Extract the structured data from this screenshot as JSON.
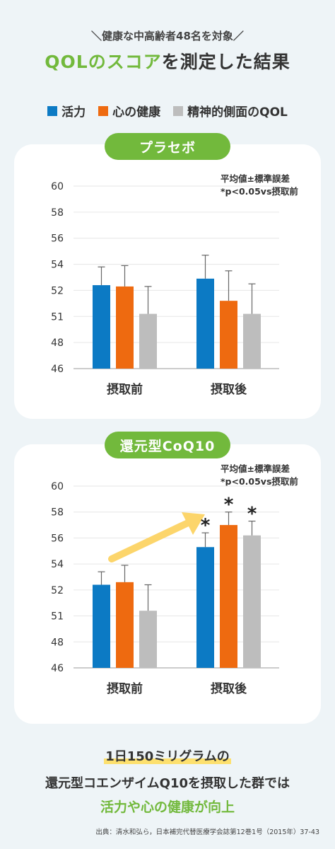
{
  "header": {
    "subtitle": "＼健康な中高齢者48名を対象／",
    "title_accent": "QOLのスコア",
    "title_rest": "を測定した結果"
  },
  "legend": [
    {
      "label": "活力",
      "color": "#0c7ac4"
    },
    {
      "label": "心の健康",
      "color": "#ee6a10"
    },
    {
      "label": "精神的側面のQOL",
      "color": "#bdbdbd"
    }
  ],
  "notes": {
    "line1": "平均値±標準誤差",
    "line2": "*p<0.05vs摂取前"
  },
  "chart_data": [
    {
      "type": "bar",
      "title": "プラセボ",
      "categories": [
        "摂取前",
        "摂取後"
      ],
      "y_ticks": [
        "46",
        "48",
        "51",
        "52",
        "54",
        "56",
        "58",
        "60"
      ],
      "series": [
        {
          "name": "活力",
          "color": "#0c7ac4",
          "values": [
            52.4,
            52.9
          ],
          "errors": [
            1.4,
            1.8
          ],
          "significant": [
            false,
            false
          ]
        },
        {
          "name": "心の健康",
          "color": "#ee6a10",
          "values": [
            52.3,
            51.6
          ],
          "errors": [
            1.6,
            1.9
          ],
          "significant": [
            false,
            false
          ]
        },
        {
          "name": "精神的側面のQOL",
          "color": "#bdbdbd",
          "values": [
            51.1,
            51.1
          ],
          "errors": [
            1.2,
            1.4
          ],
          "significant": [
            false,
            false
          ]
        }
      ],
      "grid": true
    },
    {
      "type": "bar",
      "title": "還元型CoQ10",
      "categories": [
        "摂取前",
        "摂取後"
      ],
      "y_ticks": [
        "46",
        "48",
        "51",
        "52",
        "54",
        "56",
        "58",
        "60"
      ],
      "series": [
        {
          "name": "活力",
          "color": "#0c7ac4",
          "values": [
            52.4,
            55.3
          ],
          "errors": [
            1.0,
            1.1
          ],
          "significant": [
            false,
            true
          ]
        },
        {
          "name": "心の健康",
          "color": "#ee6a10",
          "values": [
            52.6,
            57.0
          ],
          "errors": [
            1.3,
            1.0
          ],
          "significant": [
            false,
            true
          ]
        },
        {
          "name": "精神的側面のQOL",
          "color": "#bdbdbd",
          "values": [
            51.2,
            56.2
          ],
          "errors": [
            1.2,
            1.1
          ],
          "significant": [
            false,
            true
          ]
        }
      ],
      "significance_mark": "*",
      "arrow_color": "#fcd56b",
      "grid": true
    }
  ],
  "conclusion": {
    "line1": "1日150ミリグラムの",
    "line2": "還元型コエンザイムQ10を摂取した群では",
    "line3": "活力や心の健康が向上"
  },
  "source": "出典：清水和弘ら，日本補完代替医療学会誌第12巻1号（2015年）37-43"
}
